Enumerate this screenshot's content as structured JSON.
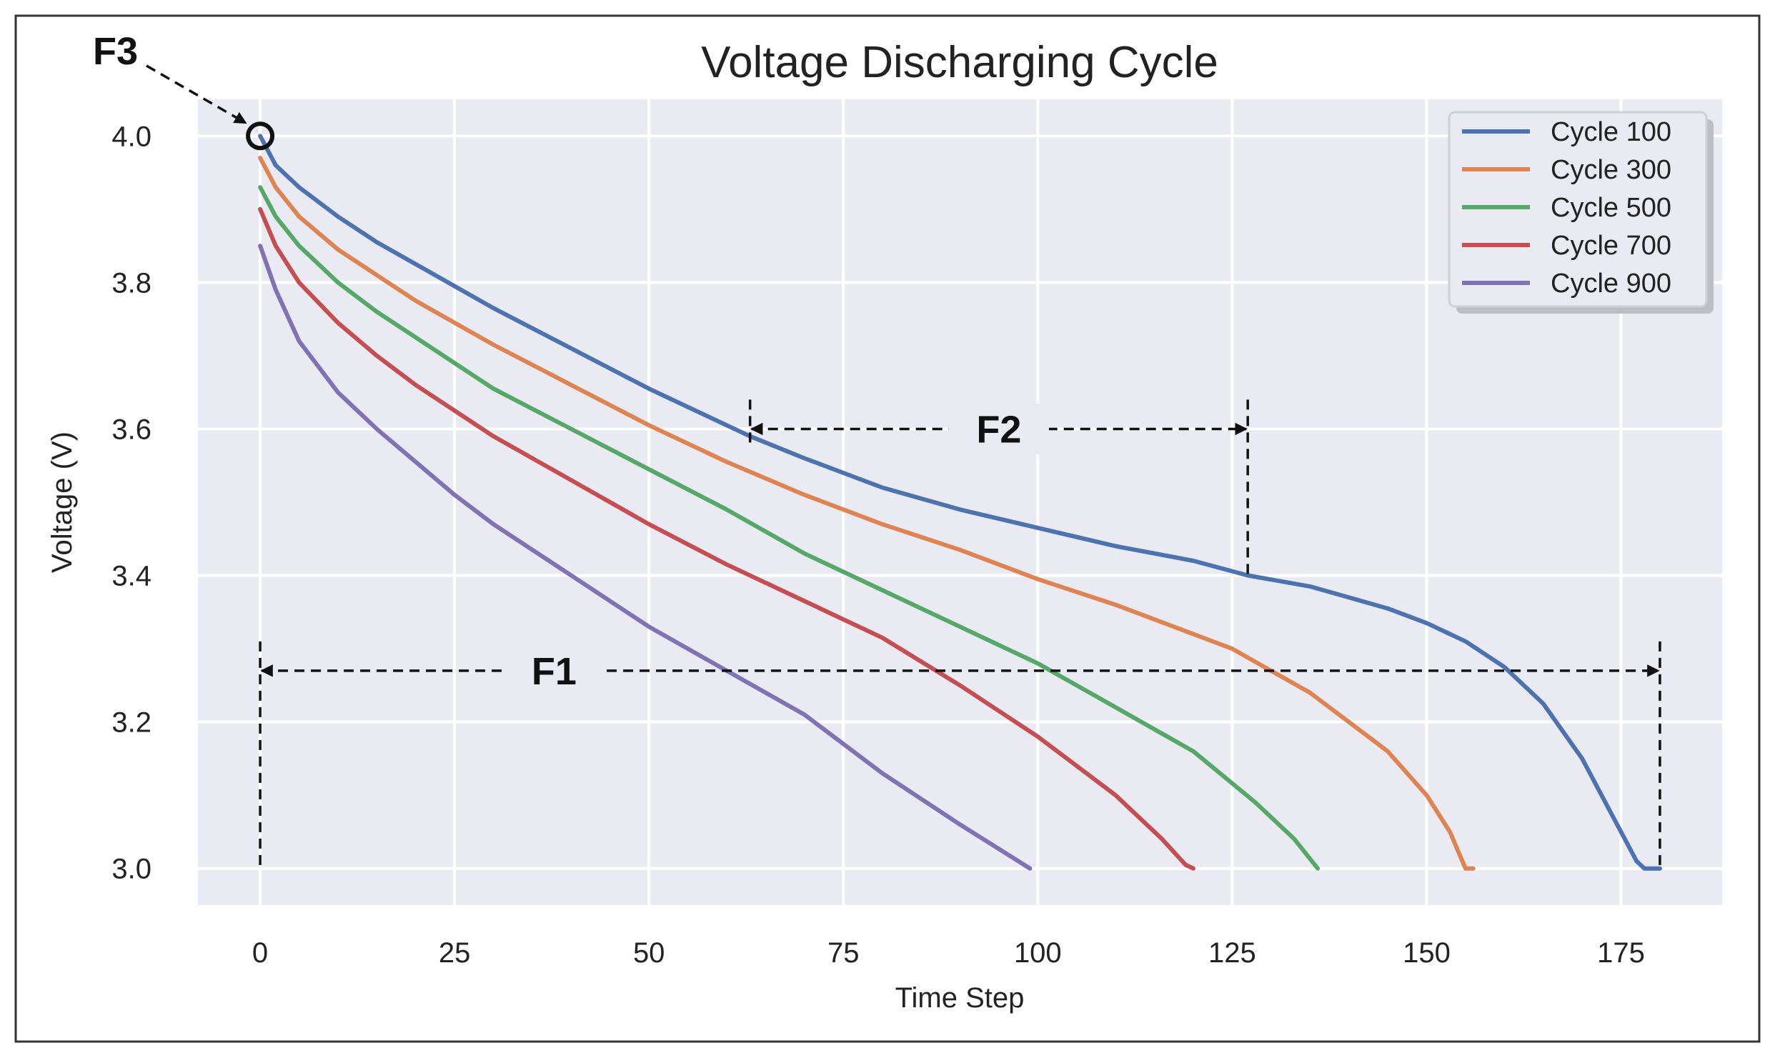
{
  "chart_data": {
    "type": "line",
    "title": "Voltage Discharging Cycle",
    "xlabel": "Time Step",
    "ylabel": "Voltage (V)",
    "xlim": [
      -8,
      188
    ],
    "ylim": [
      2.95,
      4.05
    ],
    "xticks": [
      0,
      25,
      50,
      75,
      100,
      125,
      150,
      175
    ],
    "yticks": [
      3.0,
      3.2,
      3.4,
      3.6,
      3.8,
      4.0
    ],
    "ytick_labels": [
      "3.0",
      "3.2",
      "3.4",
      "3.6",
      "3.8",
      "4.0"
    ],
    "grid": true,
    "legend_position": "top-right",
    "series": [
      {
        "name": "Cycle 100",
        "color": "#4c72b0",
        "points": [
          [
            0,
            4.0
          ],
          [
            2,
            3.96
          ],
          [
            5,
            3.93
          ],
          [
            10,
            3.89
          ],
          [
            15,
            3.855
          ],
          [
            20,
            3.825
          ],
          [
            25,
            3.795
          ],
          [
            30,
            3.765
          ],
          [
            40,
            3.71
          ],
          [
            50,
            3.655
          ],
          [
            60,
            3.605
          ],
          [
            63,
            3.59
          ],
          [
            70,
            3.56
          ],
          [
            80,
            3.52
          ],
          [
            90,
            3.49
          ],
          [
            100,
            3.465
          ],
          [
            110,
            3.44
          ],
          [
            120,
            3.42
          ],
          [
            127,
            3.4
          ],
          [
            135,
            3.385
          ],
          [
            140,
            3.37
          ],
          [
            145,
            3.355
          ],
          [
            150,
            3.335
          ],
          [
            155,
            3.31
          ],
          [
            160,
            3.275
          ],
          [
            165,
            3.225
          ],
          [
            170,
            3.15
          ],
          [
            174,
            3.07
          ],
          [
            177,
            3.01
          ],
          [
            178,
            3.0
          ],
          [
            180,
            3.0
          ]
        ]
      },
      {
        "name": "Cycle 300",
        "color": "#dd8452",
        "points": [
          [
            0,
            3.97
          ],
          [
            2,
            3.93
          ],
          [
            5,
            3.89
          ],
          [
            10,
            3.845
          ],
          [
            15,
            3.81
          ],
          [
            20,
            3.775
          ],
          [
            25,
            3.745
          ],
          [
            30,
            3.715
          ],
          [
            40,
            3.66
          ],
          [
            50,
            3.605
          ],
          [
            60,
            3.555
          ],
          [
            70,
            3.51
          ],
          [
            80,
            3.47
          ],
          [
            90,
            3.435
          ],
          [
            100,
            3.395
          ],
          [
            110,
            3.36
          ],
          [
            120,
            3.32
          ],
          [
            125,
            3.3
          ],
          [
            130,
            3.27
          ],
          [
            135,
            3.24
          ],
          [
            140,
            3.2
          ],
          [
            145,
            3.16
          ],
          [
            150,
            3.1
          ],
          [
            153,
            3.05
          ],
          [
            155,
            3.0
          ],
          [
            156,
            3.0
          ]
        ]
      },
      {
        "name": "Cycle 500",
        "color": "#55a868",
        "points": [
          [
            0,
            3.93
          ],
          [
            2,
            3.89
          ],
          [
            5,
            3.85
          ],
          [
            10,
            3.8
          ],
          [
            15,
            3.76
          ],
          [
            20,
            3.725
          ],
          [
            25,
            3.69
          ],
          [
            30,
            3.655
          ],
          [
            40,
            3.6
          ],
          [
            50,
            3.545
          ],
          [
            60,
            3.49
          ],
          [
            70,
            3.43
          ],
          [
            80,
            3.38
          ],
          [
            90,
            3.33
          ],
          [
            100,
            3.28
          ],
          [
            110,
            3.22
          ],
          [
            120,
            3.16
          ],
          [
            128,
            3.09
          ],
          [
            133,
            3.04
          ],
          [
            136,
            3.0
          ]
        ]
      },
      {
        "name": "Cycle 700",
        "color": "#c44e52",
        "points": [
          [
            0,
            3.9
          ],
          [
            2,
            3.85
          ],
          [
            5,
            3.8
          ],
          [
            10,
            3.745
          ],
          [
            15,
            3.7
          ],
          [
            20,
            3.66
          ],
          [
            25,
            3.625
          ],
          [
            30,
            3.59
          ],
          [
            40,
            3.53
          ],
          [
            50,
            3.47
          ],
          [
            60,
            3.415
          ],
          [
            70,
            3.365
          ],
          [
            80,
            3.315
          ],
          [
            90,
            3.25
          ],
          [
            100,
            3.18
          ],
          [
            110,
            3.1
          ],
          [
            116,
            3.04
          ],
          [
            119,
            3.005
          ],
          [
            120,
            3.0
          ]
        ]
      },
      {
        "name": "Cycle 900",
        "color": "#8172b3",
        "points": [
          [
            0,
            3.85
          ],
          [
            2,
            3.79
          ],
          [
            5,
            3.72
          ],
          [
            10,
            3.65
          ],
          [
            15,
            3.6
          ],
          [
            20,
            3.555
          ],
          [
            25,
            3.51
          ],
          [
            30,
            3.47
          ],
          [
            40,
            3.4
          ],
          [
            50,
            3.33
          ],
          [
            60,
            3.27
          ],
          [
            70,
            3.21
          ],
          [
            80,
            3.13
          ],
          [
            90,
            3.06
          ],
          [
            99,
            3.0
          ]
        ]
      }
    ],
    "annotations": [
      {
        "label": "F1",
        "x_start": 0,
        "x_end": 180,
        "y": 3.27
      },
      {
        "label": "F2",
        "x_start": 63,
        "x_end": 127,
        "y": 3.6
      },
      {
        "label": "F3",
        "x": 0,
        "y": 4.0
      }
    ]
  }
}
